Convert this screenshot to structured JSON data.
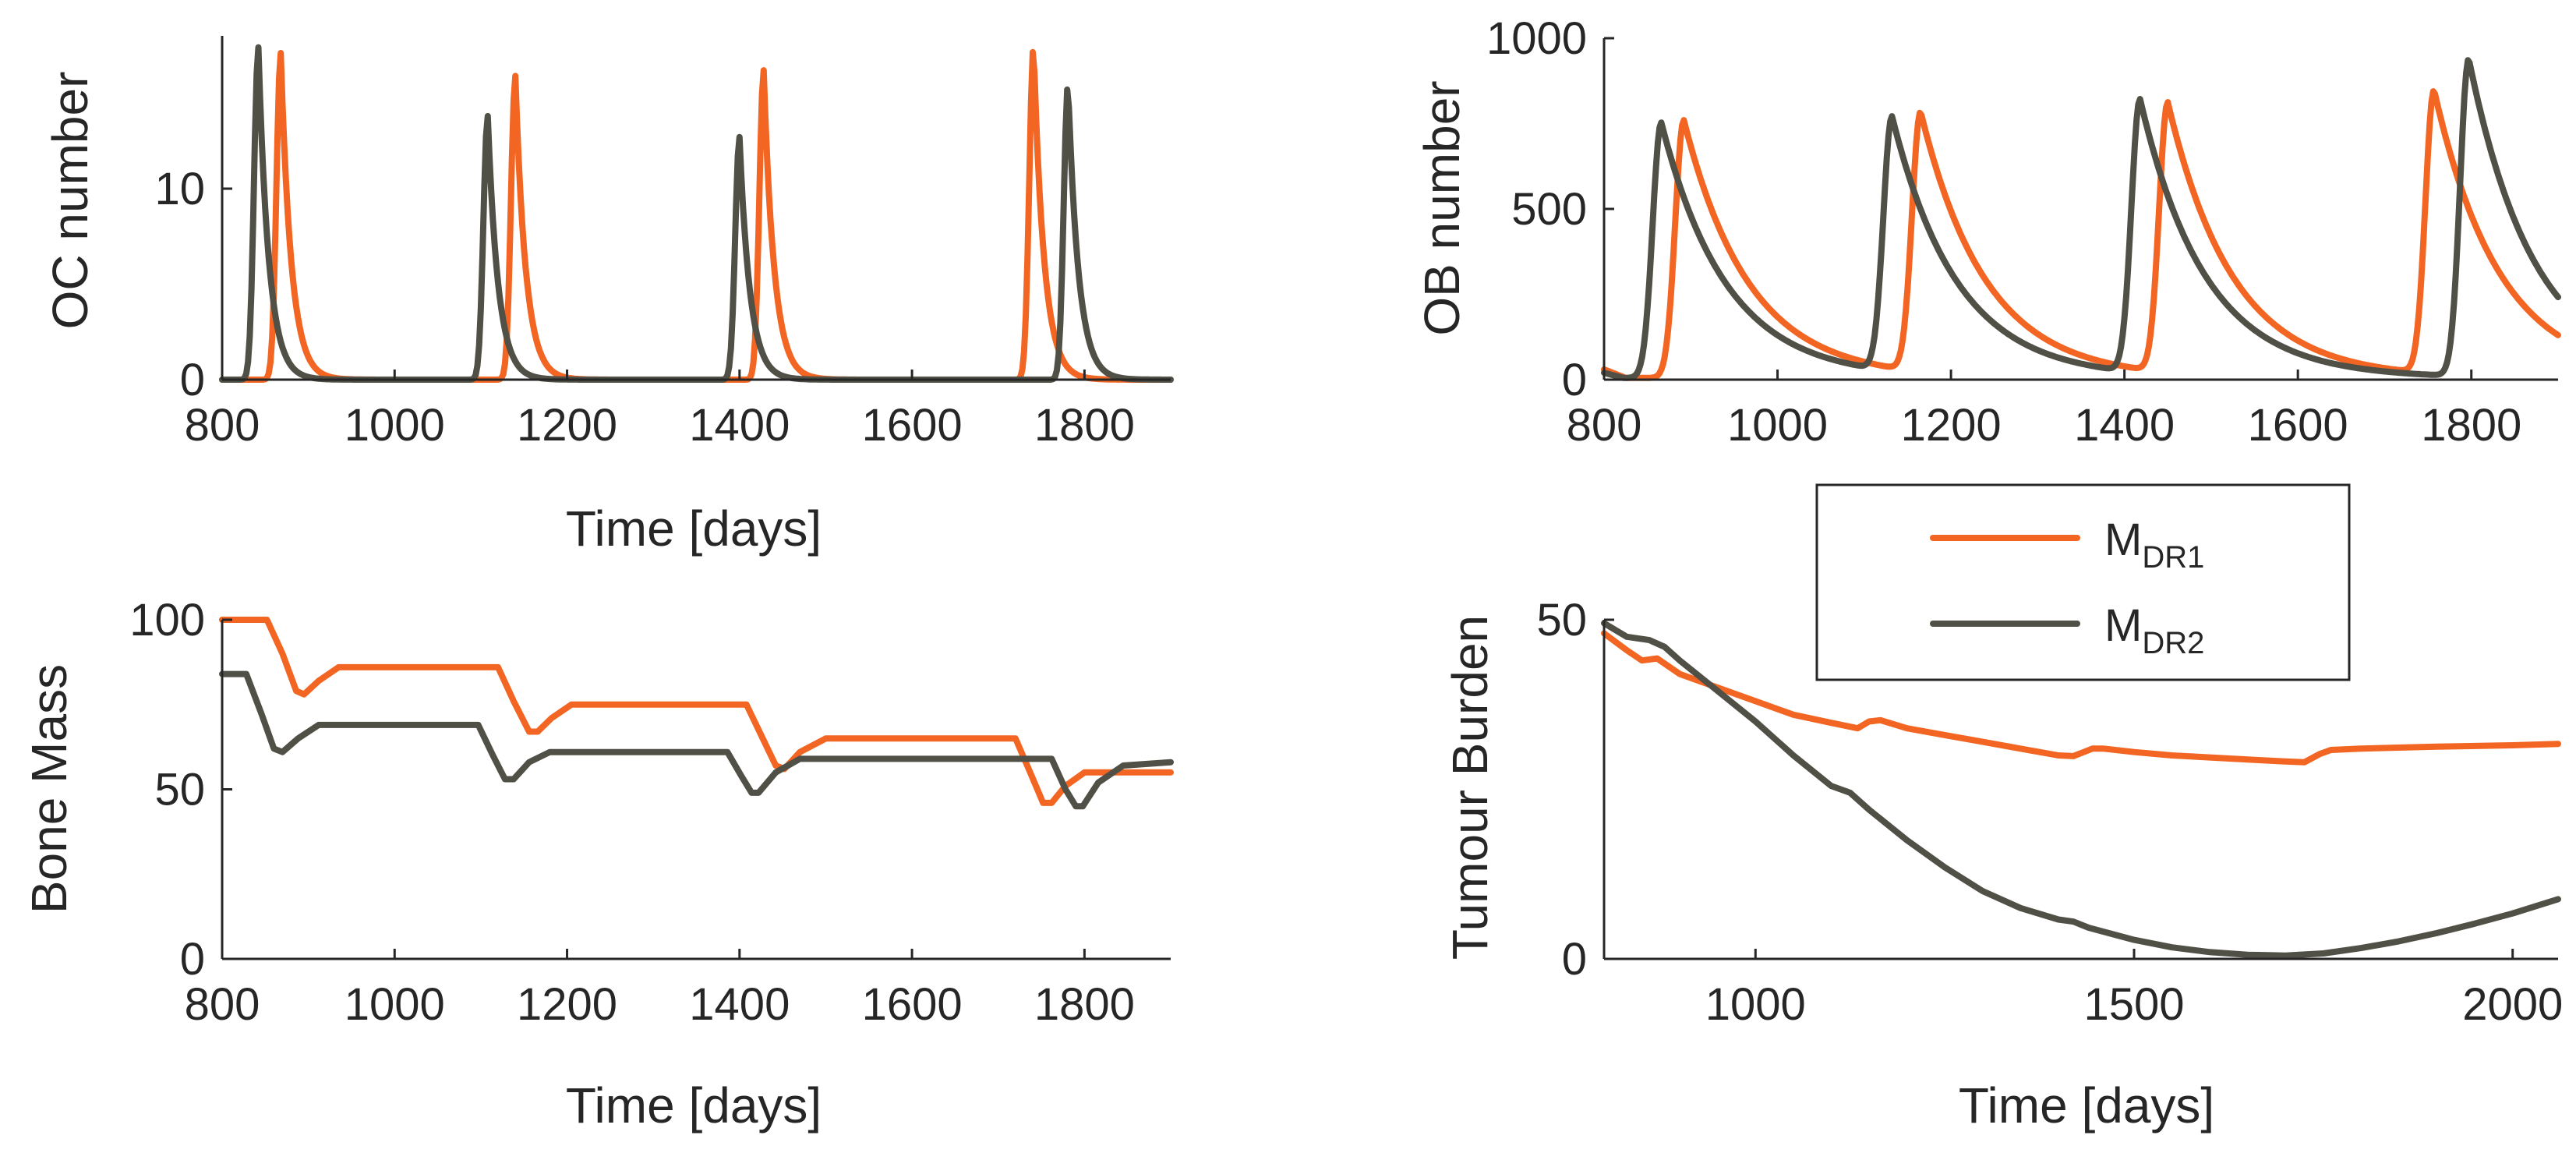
{
  "colors": {
    "mdr1": "#F26522",
    "mdr2": "#505046",
    "axis": "#262626",
    "legend_box": "#262626"
  },
  "legend": {
    "entries": [
      {
        "main": "M",
        "sub": "DR1",
        "color_key": "mdr1"
      },
      {
        "main": "M",
        "sub": "DR2",
        "color_key": "mdr2"
      }
    ]
  },
  "chart_data": [
    {
      "id": "oc",
      "type": "line",
      "ylabel": "OC number",
      "xlabel": "Time [days]",
      "xlim": [
        800,
        1900
      ],
      "ylim": [
        0,
        18
      ],
      "xticks": [
        "800",
        "1000",
        "1200",
        "1400",
        "1600",
        "1800"
      ],
      "xtick_values": [
        800,
        1000,
        1200,
        1400,
        1600,
        1800
      ],
      "yticks": [
        "0",
        "10"
      ],
      "ytick_values": [
        0,
        10
      ],
      "series": [
        {
          "name": "MDR1",
          "color_key": "mdr1",
          "baseline": 0,
          "pulses": [
            {
              "t": 868,
              "a": 17.1,
              "r": 7,
              "d": 12
            },
            {
              "t": 1140,
              "a": 15.9,
              "r": 7,
              "d": 12
            },
            {
              "t": 1428,
              "a": 16.2,
              "r": 7,
              "d": 12
            },
            {
              "t": 1741,
              "a": 17.5,
              "r": 7,
              "d": 12
            }
          ]
        },
        {
          "name": "MDR2",
          "color_key": "mdr2",
          "baseline": 0,
          "pulses": [
            {
              "t": 842,
              "a": 17.4,
              "r": 7,
              "d": 12
            },
            {
              "t": 1108,
              "a": 13.8,
              "r": 7,
              "d": 12
            },
            {
              "t": 1400,
              "a": 12.7,
              "r": 7,
              "d": 12
            },
            {
              "t": 1781,
              "a": 15.5,
              "r": 7,
              "d": 12
            }
          ]
        }
      ]
    },
    {
      "id": "ob",
      "type": "line",
      "ylabel": "OB number",
      "xlabel": "",
      "xlim": [
        800,
        1900
      ],
      "ylim": [
        0,
        1000
      ],
      "xticks": [
        "800",
        "1000",
        "1200",
        "1400",
        "1600",
        "1800"
      ],
      "xtick_values": [
        800,
        1000,
        1200,
        1400,
        1600,
        1800
      ],
      "yticks": [
        "0",
        "500",
        "1000"
      ],
      "ytick_values": [
        0,
        500,
        1000
      ],
      "series": [
        {
          "name": "MDR1",
          "color_key": "mdr1",
          "baseline": 5,
          "start": 30,
          "pulses": [
            {
              "t": 892,
              "a": 755,
              "r": 14,
              "d": 75
            },
            {
              "t": 1165,
              "a": 760,
              "r": 14,
              "d": 75
            },
            {
              "t": 1450,
              "a": 790,
              "r": 14,
              "d": 75
            },
            {
              "t": 1757,
              "a": 830,
              "r": 14,
              "d": 75
            }
          ]
        },
        {
          "name": "MDR2",
          "color_key": "mdr2",
          "baseline": 5,
          "start": 20,
          "pulses": [
            {
              "t": 866,
              "a": 748,
              "r": 14,
              "d": 75
            },
            {
              "t": 1132,
              "a": 745,
              "r": 14,
              "d": 75
            },
            {
              "t": 1418,
              "a": 800,
              "r": 14,
              "d": 75
            },
            {
              "t": 1797,
              "a": 930,
              "r": 14,
              "d": 75
            }
          ]
        }
      ]
    },
    {
      "id": "bone",
      "type": "line",
      "ylabel": "Bone Mass",
      "xlabel": "Time [days]",
      "xlim": [
        800,
        1900
      ],
      "ylim": [
        0,
        100
      ],
      "xticks": [
        "800",
        "1000",
        "1200",
        "1400",
        "1600",
        "1800"
      ],
      "xtick_values": [
        800,
        1000,
        1200,
        1400,
        1600,
        1800
      ],
      "yticks": [
        "0",
        "50",
        "100"
      ],
      "ytick_values": [
        0,
        50,
        100
      ],
      "series": [
        {
          "name": "MDR1",
          "color_key": "mdr1",
          "points": [
            [
              800,
              100
            ],
            [
              852,
              100
            ],
            [
              870,
              90
            ],
            [
              886,
              79
            ],
            [
              895,
              78
            ],
            [
              912,
              82
            ],
            [
              935,
              86
            ],
            [
              1120,
              86
            ],
            [
              1138,
              76
            ],
            [
              1156,
              67
            ],
            [
              1166,
              67
            ],
            [
              1182,
              71
            ],
            [
              1205,
              75
            ],
            [
              1408,
              75
            ],
            [
              1425,
              66
            ],
            [
              1442,
              57
            ],
            [
              1452,
              56
            ],
            [
              1470,
              61
            ],
            [
              1500,
              65
            ],
            [
              1720,
              65
            ],
            [
              1737,
              55
            ],
            [
              1752,
              46
            ],
            [
              1762,
              46
            ],
            [
              1778,
              51
            ],
            [
              1800,
              55
            ],
            [
              1900,
              55
            ]
          ]
        },
        {
          "name": "MDR2",
          "color_key": "mdr2",
          "points": [
            [
              800,
              84
            ],
            [
              828,
              84
            ],
            [
              846,
              72
            ],
            [
              860,
              62
            ],
            [
              870,
              61
            ],
            [
              888,
              65
            ],
            [
              912,
              69
            ],
            [
              1097,
              69
            ],
            [
              1114,
              60
            ],
            [
              1128,
              53
            ],
            [
              1138,
              53
            ],
            [
              1156,
              58
            ],
            [
              1180,
              61
            ],
            [
              1386,
              61
            ],
            [
              1402,
              54
            ],
            [
              1414,
              49
            ],
            [
              1422,
              49
            ],
            [
              1442,
              55
            ],
            [
              1470,
              59
            ],
            [
              1762,
              59
            ],
            [
              1778,
              50
            ],
            [
              1790,
              45
            ],
            [
              1798,
              45
            ],
            [
              1816,
              52
            ],
            [
              1845,
              57
            ],
            [
              1900,
              58
            ]
          ]
        }
      ]
    },
    {
      "id": "tumour",
      "type": "line",
      "ylabel": "Tumour Burden",
      "xlabel": "Time [days]",
      "xlim": [
        800,
        2060
      ],
      "ylim": [
        0,
        50
      ],
      "xticks": [
        "1000",
        "1500",
        "2000"
      ],
      "xtick_values": [
        1000,
        1500,
        2000
      ],
      "yticks": [
        "0",
        "50"
      ],
      "ytick_values": [
        0,
        50
      ],
      "series": [
        {
          "name": "MDR1",
          "color_key": "mdr1",
          "points": [
            [
              800,
              48
            ],
            [
              830,
              45.5
            ],
            [
              850,
              44
            ],
            [
              870,
              44.3
            ],
            [
              900,
              42
            ],
            [
              950,
              40
            ],
            [
              1000,
              38
            ],
            [
              1050,
              36
            ],
            [
              1100,
              34.8
            ],
            [
              1135,
              34
            ],
            [
              1150,
              35
            ],
            [
              1165,
              35.2
            ],
            [
              1200,
              34
            ],
            [
              1250,
              33
            ],
            [
              1300,
              32
            ],
            [
              1350,
              31
            ],
            [
              1400,
              30
            ],
            [
              1420,
              29.9
            ],
            [
              1445,
              31
            ],
            [
              1460,
              31
            ],
            [
              1500,
              30.5
            ],
            [
              1550,
              30
            ],
            [
              1600,
              29.7
            ],
            [
              1650,
              29.4
            ],
            [
              1700,
              29.1
            ],
            [
              1725,
              29
            ],
            [
              1745,
              30.2
            ],
            [
              1760,
              30.8
            ],
            [
              1800,
              31
            ],
            [
              1900,
              31.3
            ],
            [
              2000,
              31.5
            ],
            [
              2060,
              31.7
            ]
          ]
        },
        {
          "name": "MDR2",
          "color_key": "mdr2",
          "points": [
            [
              800,
              49.5
            ],
            [
              830,
              47.5
            ],
            [
              860,
              47
            ],
            [
              880,
              46
            ],
            [
              900,
              44
            ],
            [
              950,
              39.5
            ],
            [
              1000,
              35
            ],
            [
              1050,
              30
            ],
            [
              1100,
              25.5
            ],
            [
              1125,
              24.5
            ],
            [
              1150,
              22
            ],
            [
              1200,
              17.5
            ],
            [
              1250,
              13.5
            ],
            [
              1300,
              10
            ],
            [
              1350,
              7.5
            ],
            [
              1400,
              5.8
            ],
            [
              1420,
              5.5
            ],
            [
              1440,
              4.6
            ],
            [
              1500,
              2.8
            ],
            [
              1550,
              1.7
            ],
            [
              1600,
              1
            ],
            [
              1650,
              0.6
            ],
            [
              1700,
              0.5
            ],
            [
              1750,
              0.8
            ],
            [
              1800,
              1.6
            ],
            [
              1850,
              2.6
            ],
            [
              1900,
              3.8
            ],
            [
              1950,
              5.2
            ],
            [
              2000,
              6.7
            ],
            [
              2060,
              8.8
            ]
          ]
        }
      ]
    }
  ]
}
